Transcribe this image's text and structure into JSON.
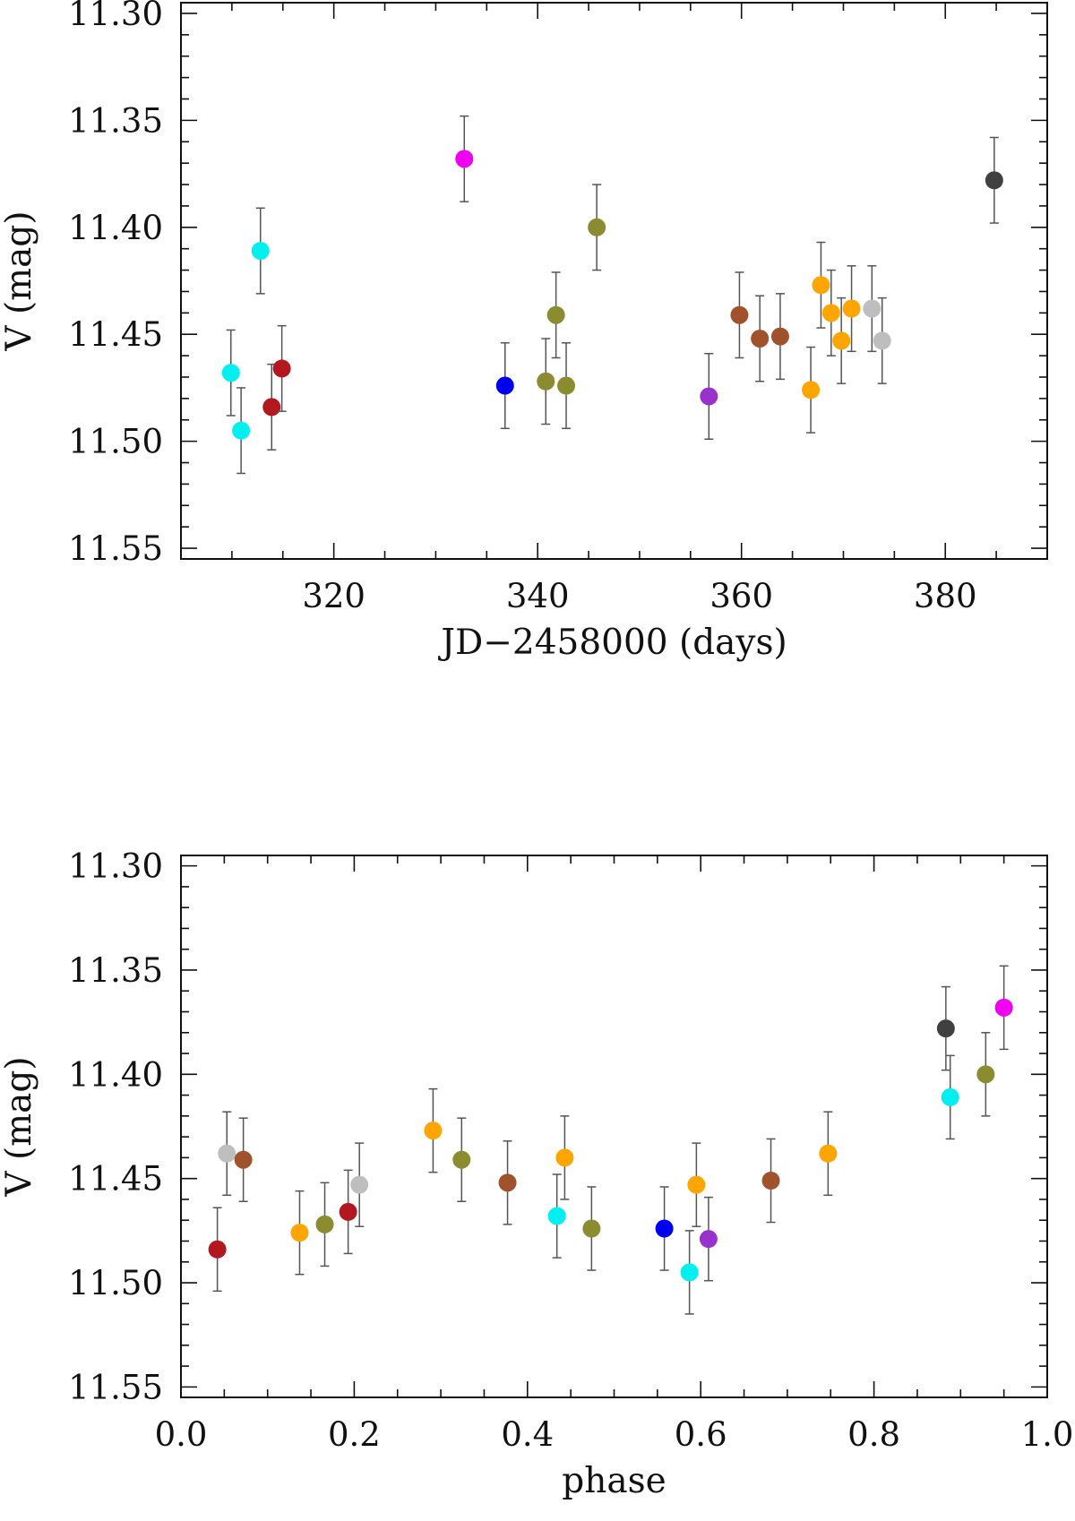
{
  "chart_data": [
    {
      "type": "scatter",
      "xlabel": "JD−2458000 (days)",
      "ylabel": "V (mag)",
      "xlim": [
        305,
        390
      ],
      "ylim": [
        11.555,
        11.295
      ],
      "y_inverted": true,
      "xticks": [
        320,
        340,
        360,
        380
      ],
      "xtick_labels": [
        "320",
        "340",
        "360",
        "380"
      ],
      "yticks": [
        11.3,
        11.35,
        11.4,
        11.45,
        11.5,
        11.55
      ],
      "ytick_labels": [
        "11.30",
        "11.35",
        "11.40",
        "11.45",
        "11.50",
        "11.55"
      ],
      "error_bar": 0.02,
      "points": [
        {
          "x": 309.9,
          "y": 11.468,
          "color": "#00f0f0"
        },
        {
          "x": 310.9,
          "y": 11.495,
          "color": "#00f0f0"
        },
        {
          "x": 312.8,
          "y": 11.411,
          "color": "#00f0f0"
        },
        {
          "x": 313.9,
          "y": 11.484,
          "color": "#b2181e"
        },
        {
          "x": 314.9,
          "y": 11.466,
          "color": "#b2181e"
        },
        {
          "x": 332.8,
          "y": 11.368,
          "color": "#f000f0"
        },
        {
          "x": 336.8,
          "y": 11.474,
          "color": "#0000f0"
        },
        {
          "x": 340.8,
          "y": 11.472,
          "color": "#8b8b30"
        },
        {
          "x": 341.8,
          "y": 11.441,
          "color": "#8b8b30"
        },
        {
          "x": 342.8,
          "y": 11.474,
          "color": "#8b8b30"
        },
        {
          "x": 345.8,
          "y": 11.4,
          "color": "#8b8b30"
        },
        {
          "x": 356.8,
          "y": 11.479,
          "color": "#9932cc"
        },
        {
          "x": 359.8,
          "y": 11.441,
          "color": "#a0522d"
        },
        {
          "x": 361.8,
          "y": 11.452,
          "color": "#a0522d"
        },
        {
          "x": 363.8,
          "y": 11.451,
          "color": "#a0522d"
        },
        {
          "x": 366.8,
          "y": 11.476,
          "color": "#ffa500"
        },
        {
          "x": 367.8,
          "y": 11.427,
          "color": "#ffa500"
        },
        {
          "x": 368.8,
          "y": 11.44,
          "color": "#ffa500"
        },
        {
          "x": 369.8,
          "y": 11.453,
          "color": "#ffa500"
        },
        {
          "x": 370.8,
          "y": 11.438,
          "color": "#ffa500"
        },
        {
          "x": 372.8,
          "y": 11.438,
          "color": "#bebebe"
        },
        {
          "x": 373.8,
          "y": 11.453,
          "color": "#bebebe"
        },
        {
          "x": 384.8,
          "y": 11.378,
          "color": "#404040"
        }
      ]
    },
    {
      "type": "scatter",
      "xlabel": "phase",
      "ylabel": "V (mag)",
      "xlim": [
        0.0,
        1.0
      ],
      "ylim": [
        11.555,
        11.295
      ],
      "y_inverted": true,
      "xticks": [
        0.0,
        0.2,
        0.4,
        0.6,
        0.8,
        1.0
      ],
      "xtick_labels": [
        "0.0",
        "0.2",
        "0.4",
        "0.6",
        "0.8",
        "1.0"
      ],
      "yticks": [
        11.3,
        11.35,
        11.4,
        11.45,
        11.5,
        11.55
      ],
      "ytick_labels": [
        "11.30",
        "11.35",
        "11.40",
        "11.45",
        "11.50",
        "11.55"
      ],
      "error_bar": 0.02,
      "points": [
        {
          "x": 0.042,
          "y": 11.484,
          "color": "#b2181e"
        },
        {
          "x": 0.053,
          "y": 11.438,
          "color": "#bebebe"
        },
        {
          "x": 0.072,
          "y": 11.441,
          "color": "#a0522d"
        },
        {
          "x": 0.137,
          "y": 11.476,
          "color": "#ffa500"
        },
        {
          "x": 0.166,
          "y": 11.472,
          "color": "#8b8b30"
        },
        {
          "x": 0.193,
          "y": 11.466,
          "color": "#b2181e"
        },
        {
          "x": 0.206,
          "y": 11.453,
          "color": "#bebebe"
        },
        {
          "x": 0.291,
          "y": 11.427,
          "color": "#ffa500"
        },
        {
          "x": 0.324,
          "y": 11.441,
          "color": "#8b8b30"
        },
        {
          "x": 0.377,
          "y": 11.452,
          "color": "#a0522d"
        },
        {
          "x": 0.434,
          "y": 11.468,
          "color": "#00f0f0"
        },
        {
          "x": 0.443,
          "y": 11.44,
          "color": "#ffa500"
        },
        {
          "x": 0.474,
          "y": 11.474,
          "color": "#8b8b30"
        },
        {
          "x": 0.558,
          "y": 11.474,
          "color": "#0000f0"
        },
        {
          "x": 0.587,
          "y": 11.495,
          "color": "#00f0f0"
        },
        {
          "x": 0.595,
          "y": 11.453,
          "color": "#ffa500"
        },
        {
          "x": 0.609,
          "y": 11.479,
          "color": "#9932cc"
        },
        {
          "x": 0.681,
          "y": 11.451,
          "color": "#a0522d"
        },
        {
          "x": 0.747,
          "y": 11.438,
          "color": "#ffa500"
        },
        {
          "x": 0.883,
          "y": 11.378,
          "color": "#404040"
        },
        {
          "x": 0.888,
          "y": 11.411,
          "color": "#00f0f0"
        },
        {
          "x": 0.929,
          "y": 11.4,
          "color": "#8b8b30"
        },
        {
          "x": 0.95,
          "y": 11.368,
          "color": "#f000f0"
        }
      ]
    }
  ]
}
